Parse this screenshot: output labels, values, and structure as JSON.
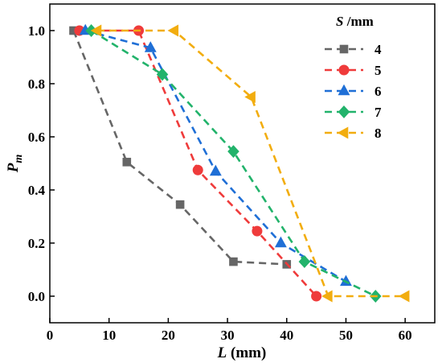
{
  "chart_data": {
    "type": "line",
    "xlabel_var": "L",
    "xlabel_unit": " (mm)",
    "ylabel_var": "P",
    "ylabel_sub": "m",
    "xlim": [
      0,
      65
    ],
    "ylim": [
      -0.1,
      1.1
    ],
    "xticks": [
      0,
      10,
      20,
      30,
      40,
      50,
      60
    ],
    "yticks": [
      0.0,
      0.2,
      0.4,
      0.6,
      0.8,
      1.0
    ],
    "xtick_labels": [
      "0",
      "10",
      "20",
      "30",
      "40",
      "50",
      "60"
    ],
    "ytick_labels": [
      "0.0",
      "0.2",
      "0.4",
      "0.6",
      "0.8",
      "1.0"
    ],
    "grid": false,
    "legend": {
      "title_var": "S",
      "title_unit": " /mm",
      "placement": "top-right"
    },
    "series": [
      {
        "name": "4",
        "color": "#666666",
        "marker": "square",
        "x": [
          4,
          13,
          22,
          31,
          40
        ],
        "y": [
          1.0,
          0.505,
          0.345,
          0.13,
          0.12
        ]
      },
      {
        "name": "5",
        "color": "#ef3b3b",
        "marker": "circle",
        "x": [
          5,
          15,
          25,
          35,
          45
        ],
        "y": [
          1.0,
          1.0,
          0.475,
          0.245,
          0.0
        ]
      },
      {
        "name": "6",
        "color": "#1f6fd6",
        "marker": "triangle-up",
        "x": [
          6,
          17,
          28,
          39,
          50
        ],
        "y": [
          1.0,
          0.935,
          0.47,
          0.2,
          0.055
        ]
      },
      {
        "name": "7",
        "color": "#22b36b",
        "marker": "diamond",
        "x": [
          7,
          19,
          31,
          43,
          55
        ],
        "y": [
          1.0,
          0.835,
          0.545,
          0.13,
          0.0
        ]
      },
      {
        "name": "8",
        "color": "#f2ad0f",
        "marker": "triangle-left",
        "x": [
          8,
          21,
          34,
          47,
          60
        ],
        "y": [
          1.0,
          1.0,
          0.75,
          0.0,
          0.0
        ]
      }
    ]
  }
}
